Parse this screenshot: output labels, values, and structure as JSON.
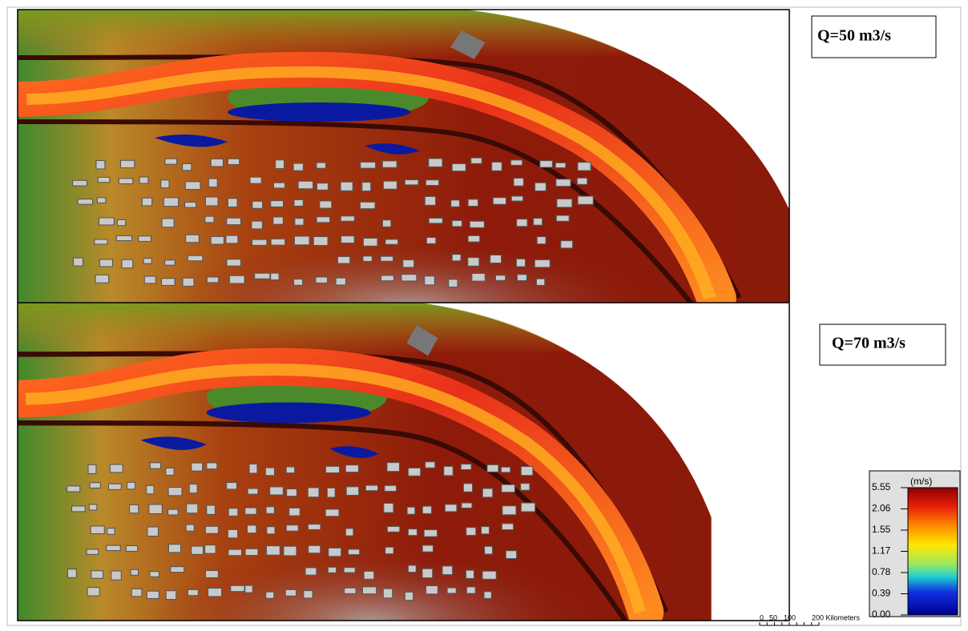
{
  "panels": [
    {
      "label": "Q=50 m3/s"
    },
    {
      "label": "Q=70 m3/s"
    }
  ],
  "legend": {
    "title": "(m/s)",
    "labels": [
      "5.55",
      "2.06",
      "1.55",
      "1.17",
      "0.78",
      "0.39",
      "0.00"
    ]
  },
  "scale": {
    "labels": [
      "0",
      "50",
      "100",
      "200 Kilometers"
    ]
  }
}
